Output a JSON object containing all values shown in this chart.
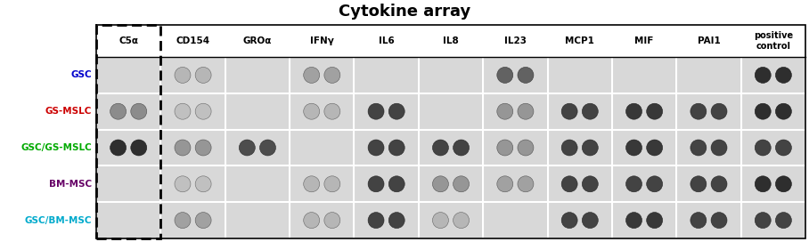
{
  "title": "Cytokine array",
  "col_labels": [
    "C5α",
    "CD154",
    "GROα",
    "IFNγ",
    "IL6",
    "IL8",
    "IL23",
    "MCP1",
    "MIF",
    "PAI1",
    "positive\ncontrol"
  ],
  "row_labels": [
    "GSC",
    "GS-MSLC",
    "GSC/GS-MSLC",
    "BM-MSC",
    "GSC/BM-MSC"
  ],
  "row_colors": [
    "#0000cc",
    "#cc0000",
    "#00aa00",
    "#660066",
    "#00aacc"
  ],
  "background_color": "#d8d8d8",
  "figsize": [
    9.08,
    2.72
  ],
  "dpi": 100,
  "dot_intensities": [
    [
      0,
      0.35,
      0,
      0.45,
      0,
      0,
      0.75,
      0,
      0,
      0,
      1.0
    ],
    [
      0.55,
      0.3,
      0,
      0.35,
      0.9,
      0,
      0.5,
      0.9,
      0.95,
      0.9,
      1.0
    ],
    [
      1.0,
      0.5,
      0.85,
      0,
      0.9,
      0.9,
      0.5,
      0.9,
      0.95,
      0.9,
      0.9
    ],
    [
      0,
      0.3,
      0,
      0.35,
      0.9,
      0.5,
      0.45,
      0.9,
      0.9,
      0.9,
      1.0
    ],
    [
      0,
      0.45,
      0,
      0.35,
      0.9,
      0.35,
      0,
      0.9,
      0.95,
      0.9,
      0.9
    ]
  ]
}
